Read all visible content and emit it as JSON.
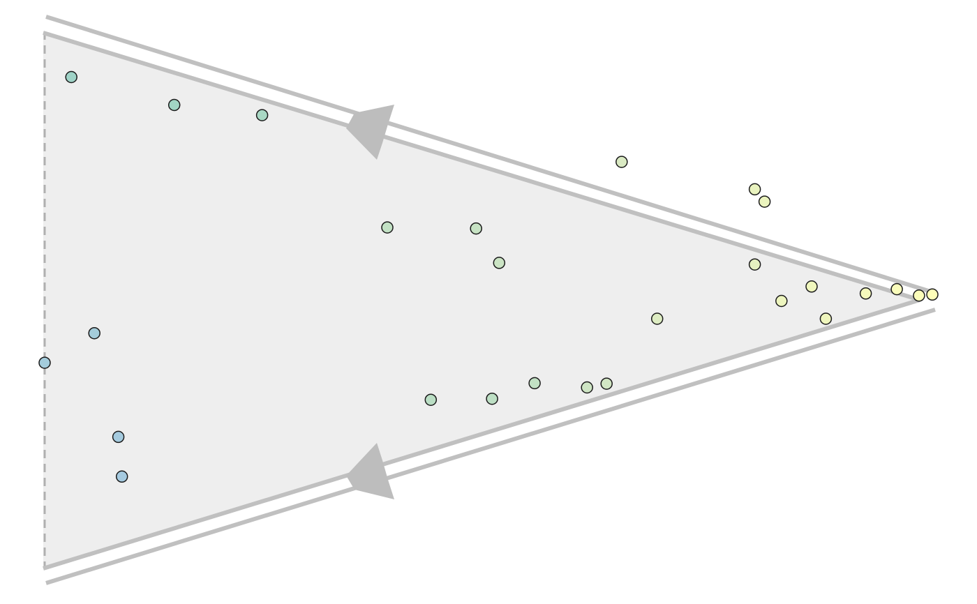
{
  "chart_data": {
    "type": "scatter",
    "title": "",
    "xlabel": "",
    "ylabel": "",
    "description_free": true,
    "x_range": [
      0,
      1
    ],
    "y_range": [
      -0.5,
      0.5
    ],
    "grid": false,
    "legend": "none",
    "colors": {
      "triangle_fill": "#eeeeee",
      "border": "#c0c0c0",
      "dashed_edge": "#b0b0b0",
      "point_outline": "#1a1a1a",
      "gradient": [
        "#a6c9e4",
        "#9ed4c4",
        "#d6e8c4",
        "#ffffb9"
      ]
    },
    "series": [
      {
        "points": [
          {
            "x": 0.03,
            "y": -0.415,
            "v": 0.3
          },
          {
            "x": 0.146,
            "y": -0.363,
            "v": 0.35
          },
          {
            "x": 0.245,
            "y": -0.344,
            "v": 0.4
          },
          {
            "x": 0.386,
            "y": -0.135,
            "v": 0.55
          },
          {
            "x": 0.486,
            "y": -0.133,
            "v": 0.58
          },
          {
            "x": 0.512,
            "y": -0.069,
            "v": 0.6
          },
          {
            "x": 0.056,
            "y": 0.062,
            "v": 0.1
          },
          {
            "x": 0.0,
            "y": 0.117,
            "v": 0.08
          },
          {
            "x": 0.083,
            "y": 0.255,
            "v": 0.05
          },
          {
            "x": 0.087,
            "y": 0.329,
            "v": 0.04
          },
          {
            "x": 0.435,
            "y": 0.186,
            "v": 0.5
          },
          {
            "x": 0.504,
            "y": 0.184,
            "v": 0.52
          },
          {
            "x": 0.552,
            "y": 0.155,
            "v": 0.55
          },
          {
            "x": 0.611,
            "y": 0.163,
            "v": 0.62
          },
          {
            "x": 0.633,
            "y": 0.156,
            "v": 0.64
          },
          {
            "x": 0.65,
            "y": -0.257,
            "v": 0.7
          },
          {
            "x": 0.69,
            "y": 0.035,
            "v": 0.72
          },
          {
            "x": 0.8,
            "y": -0.066,
            "v": 0.8
          },
          {
            "x": 0.8,
            "y": -0.206,
            "v": 0.82
          },
          {
            "x": 0.811,
            "y": -0.183,
            "v": 0.84
          },
          {
            "x": 0.83,
            "y": 0.002,
            "v": 0.85
          },
          {
            "x": 0.864,
            "y": -0.025,
            "v": 0.88
          },
          {
            "x": 0.88,
            "y": 0.035,
            "v": 0.87
          },
          {
            "x": 0.96,
            "y": -0.02,
            "v": 0.95
          },
          {
            "x": 0.985,
            "y": -0.008,
            "v": 0.97
          },
          {
            "x": 1.0,
            "y": -0.01,
            "v": 1.0
          },
          {
            "x": 0.925,
            "y": -0.012,
            "v": 0.92
          }
        ]
      }
    ]
  }
}
